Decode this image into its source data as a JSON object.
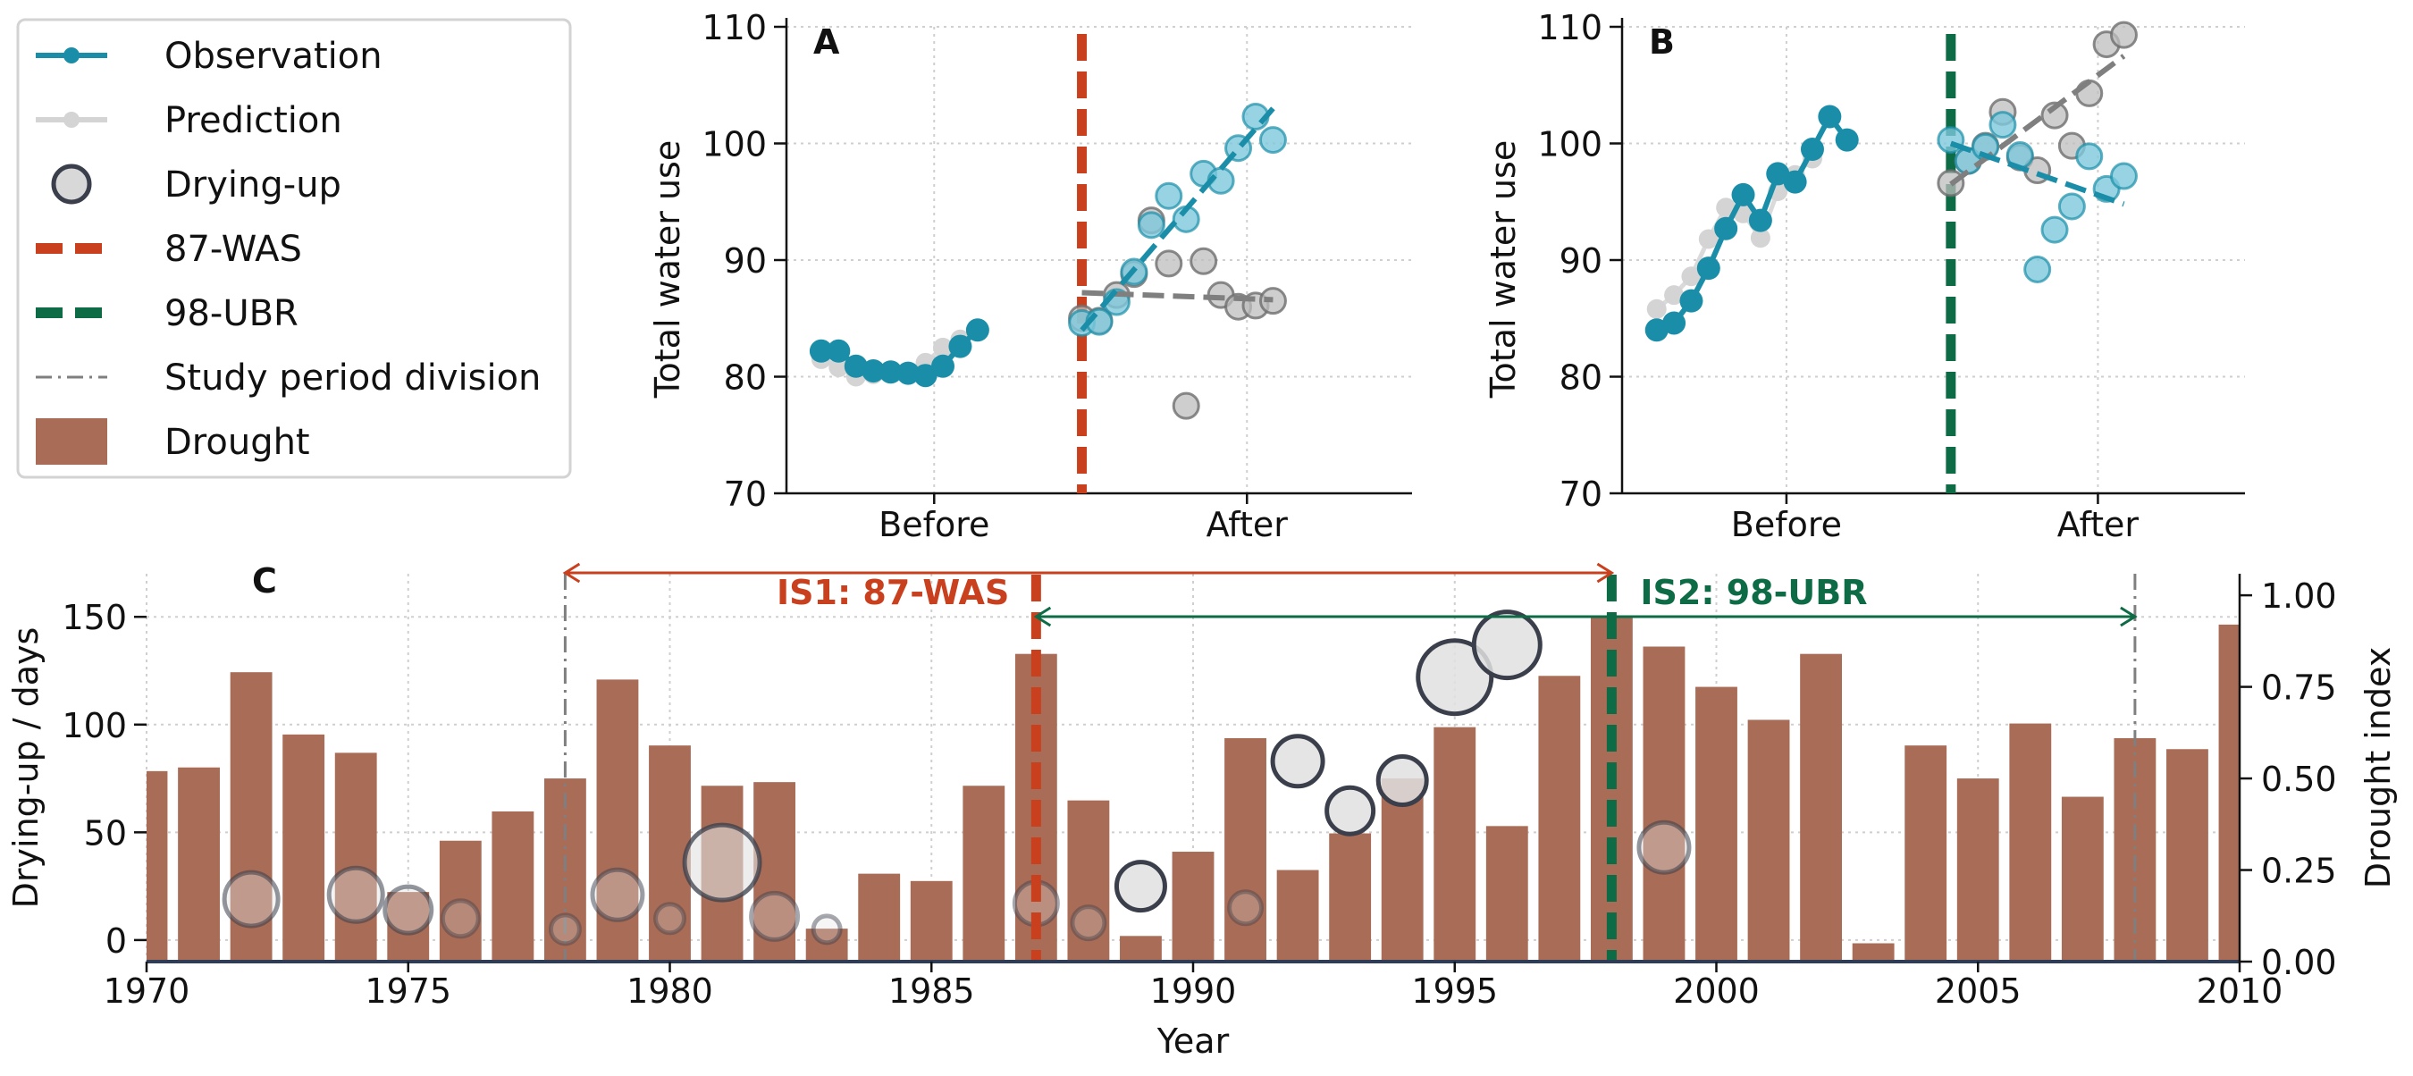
{
  "colors": {
    "observation": "#1a8ea8",
    "observation_light": "#8fcfe0",
    "prediction": "#d4d4d4",
    "prediction_dark": "#b9b9b9",
    "circle_edge": "#3a3f4b",
    "was": "#c9401f",
    "ubr": "#0d6b46",
    "division": "#7f7f7f",
    "drought": "#a96c56",
    "trend_pred": "#7f7f7f"
  },
  "legend": [
    {
      "key": "observation",
      "label": "Observation"
    },
    {
      "key": "prediction",
      "label": "Prediction"
    },
    {
      "key": "drying",
      "label": "Drying-up"
    },
    {
      "key": "was",
      "label": "87-WAS"
    },
    {
      "key": "ubr",
      "label": "98-UBR"
    },
    {
      "key": "division",
      "label": "Study period division"
    },
    {
      "key": "drought",
      "label": "Drought"
    }
  ],
  "chart_data": [
    {
      "id": "A",
      "type": "line",
      "panel_label": "A",
      "ylabel": "Total water use",
      "ylim": [
        70,
        110
      ],
      "yticks": [
        70,
        80,
        90,
        100,
        110
      ],
      "xlim": [
        -17,
        19
      ],
      "x_category_labels": [
        {
          "label": "Before",
          "x": -8.5
        },
        {
          "label": "After",
          "x": 9.5
        }
      ],
      "intervention_x": 0,
      "observation_before": [
        [
          -15,
          82.2
        ],
        [
          -14,
          82.2
        ],
        [
          -13,
          80.9
        ],
        [
          -12,
          80.5
        ],
        [
          -11,
          80.4
        ],
        [
          -10,
          80.3
        ],
        [
          -9,
          80.1
        ],
        [
          -8,
          80.9
        ],
        [
          -7,
          82.6
        ],
        [
          -6,
          84.0
        ]
      ],
      "prediction_before": [
        [
          -15,
          81.5
        ],
        [
          -14,
          80.8
        ],
        [
          -13,
          80.0
        ],
        [
          -12,
          80.2
        ],
        [
          -11,
          80.3
        ],
        [
          -10,
          80.2
        ],
        [
          -9,
          81.2
        ],
        [
          -8,
          82.5
        ],
        [
          -7,
          83.2
        ]
      ],
      "observation_after": [
        [
          0,
          84.6
        ],
        [
          1,
          84.7
        ],
        [
          2,
          86.4
        ],
        [
          3,
          89.0
        ],
        [
          4,
          93.0
        ],
        [
          5,
          95.5
        ],
        [
          6,
          93.5
        ],
        [
          7,
          97.4
        ],
        [
          8,
          96.8
        ],
        [
          9,
          99.6
        ],
        [
          10,
          102.3
        ],
        [
          11,
          100.3
        ]
      ],
      "prediction_after": [
        [
          0,
          85.0
        ],
        [
          1,
          84.8
        ],
        [
          2,
          87.0
        ],
        [
          3,
          88.8
        ],
        [
          4,
          93.4
        ],
        [
          5,
          89.7
        ],
        [
          6,
          77.5
        ],
        [
          7,
          89.9
        ],
        [
          8,
          87.0
        ],
        [
          9,
          86.0
        ],
        [
          10,
          86.1
        ],
        [
          11,
          86.5
        ]
      ],
      "observation_trend": [
        [
          0,
          84.0
        ],
        [
          11,
          103.0
        ]
      ],
      "prediction_trend": [
        [
          0,
          87.2
        ],
        [
          11,
          86.6
        ]
      ]
    },
    {
      "id": "B",
      "type": "line",
      "panel_label": "B",
      "ylabel": "Total water use",
      "ylim": [
        70,
        110
      ],
      "yticks": [
        70,
        80,
        90,
        100,
        110
      ],
      "xlim": [
        -19,
        17
      ],
      "x_category_labels": [
        {
          "label": "Before",
          "x": -9.5
        },
        {
          "label": "After",
          "x": 8.5
        }
      ],
      "intervention_x": 0,
      "observation_before": [
        [
          -17,
          84.0
        ],
        [
          -16,
          84.6
        ],
        [
          -15,
          86.5
        ],
        [
          -14,
          89.3
        ],
        [
          -13,
          92.7
        ],
        [
          -12,
          95.6
        ],
        [
          -11,
          93.4
        ],
        [
          -10,
          97.4
        ],
        [
          -9,
          96.7
        ],
        [
          -8,
          99.5
        ],
        [
          -7,
          102.3
        ],
        [
          -6,
          100.3
        ]
      ],
      "prediction_before": [
        [
          -17,
          85.8
        ],
        [
          -16,
          87.0
        ],
        [
          -15,
          88.6
        ],
        [
          -14,
          91.8
        ],
        [
          -13,
          94.5
        ],
        [
          -12,
          94.0
        ],
        [
          -11,
          91.9
        ],
        [
          -10,
          95.9
        ],
        [
          -9,
          97.3
        ],
        [
          -8,
          98.7
        ]
      ],
      "observation_after": [
        [
          0,
          100.3
        ],
        [
          1,
          98.5
        ],
        [
          2,
          99.7
        ],
        [
          3,
          101.6
        ],
        [
          4,
          99.0
        ],
        [
          5,
          89.2
        ],
        [
          6,
          92.6
        ],
        [
          7,
          94.6
        ],
        [
          8,
          98.9
        ],
        [
          9,
          96.1
        ],
        [
          10,
          97.2
        ]
      ],
      "prediction_after": [
        [
          0,
          96.6
        ],
        [
          1,
          98.5
        ],
        [
          2,
          99.8
        ],
        [
          3,
          102.7
        ],
        [
          4,
          98.8
        ],
        [
          5,
          97.7
        ],
        [
          6,
          102.4
        ],
        [
          7,
          99.8
        ],
        [
          8,
          104.3
        ],
        [
          9,
          108.5
        ],
        [
          10,
          109.3
        ]
      ],
      "observation_trend": [
        [
          0,
          100.0
        ],
        [
          10,
          94.8
        ]
      ],
      "prediction_trend": [
        [
          0,
          96.5
        ],
        [
          10,
          107.5
        ]
      ]
    },
    {
      "id": "C",
      "type": "bar",
      "panel_label": "C",
      "xlabel": "Year",
      "ylabel": "Drying-up / days",
      "y2label": "Drought index",
      "xlim": [
        1970,
        2010
      ],
      "xticks": [
        1970,
        1975,
        1980,
        1985,
        1990,
        1995,
        2000,
        2005,
        2010
      ],
      "ylim": [
        -10,
        170
      ],
      "yticks": [
        0,
        50,
        100,
        150
      ],
      "y2lim": [
        0,
        1.0588
      ],
      "y2ticks": [
        0.0,
        0.25,
        0.5,
        0.75,
        1.0
      ],
      "y2ticklabels": [
        "0.00",
        "0.25",
        "0.50",
        "0.75",
        "1.00"
      ],
      "drought_years": [
        1970,
        1971,
        1972,
        1973,
        1974,
        1975,
        1976,
        1977,
        1978,
        1979,
        1980,
        1981,
        1982,
        1983,
        1984,
        1985,
        1986,
        1987,
        1988,
        1989,
        1990,
        1991,
        1992,
        1993,
        1994,
        1995,
        1996,
        1997,
        1998,
        1999,
        2000,
        2001,
        2002,
        2003,
        2004,
        2005,
        2006,
        2007,
        2008,
        2009,
        2010
      ],
      "drought_index": [
        0.52,
        0.53,
        0.79,
        0.62,
        0.57,
        0.19,
        0.33,
        0.41,
        0.5,
        0.77,
        0.59,
        0.48,
        0.49,
        0.09,
        0.24,
        0.22,
        0.48,
        0.84,
        0.44,
        0.07,
        0.3,
        0.61,
        0.25,
        0.35,
        0.5,
        0.64,
        0.37,
        0.78,
        0.94,
        0.86,
        0.75,
        0.66,
        0.84,
        0.05,
        0.59,
        0.5,
        0.65,
        0.45,
        0.61,
        0.58,
        0.92
      ],
      "drying_up": [
        {
          "year": 1972,
          "days": 19,
          "r": 30,
          "alpha": 0.4
        },
        {
          "year": 1974,
          "days": 21,
          "r": 30,
          "alpha": 0.4
        },
        {
          "year": 1975,
          "days": 14,
          "r": 26,
          "alpha": 0.4
        },
        {
          "year": 1976,
          "days": 10,
          "r": 20,
          "alpha": 0.25
        },
        {
          "year": 1978,
          "days": 5,
          "r": 16,
          "alpha": 0.25
        },
        {
          "year": 1979,
          "days": 21,
          "r": 28,
          "alpha": 0.35
        },
        {
          "year": 1980,
          "days": 10,
          "r": 16,
          "alpha": 0.25
        },
        {
          "year": 1981,
          "days": 36,
          "r": 42,
          "alpha": 0.6
        },
        {
          "year": 1982,
          "days": 11,
          "r": 26,
          "alpha": 0.3
        },
        {
          "year": 1983,
          "days": 5,
          "r": 15,
          "alpha": 0.3
        },
        {
          "year": 1987,
          "days": 17,
          "r": 24,
          "alpha": 0.3
        },
        {
          "year": 1988,
          "days": 8,
          "r": 18,
          "alpha": 0.25
        },
        {
          "year": 1989,
          "days": 25,
          "r": 27,
          "alpha": 0.85
        },
        {
          "year": 1991,
          "days": 15,
          "r": 18,
          "alpha": 0.25
        },
        {
          "year": 1992,
          "days": 83,
          "r": 28,
          "alpha": 0.85
        },
        {
          "year": 1993,
          "days": 60,
          "r": 26,
          "alpha": 0.85
        },
        {
          "year": 1994,
          "days": 74,
          "r": 27,
          "alpha": 0.85
        },
        {
          "year": 1995,
          "days": 122,
          "r": 41,
          "alpha": 0.85
        },
        {
          "year": 1996,
          "days": 137,
          "r": 37,
          "alpha": 0.85
        },
        {
          "year": 1999,
          "days": 43,
          "r": 28,
          "alpha": 0.4
        }
      ],
      "was_year": 1987,
      "ubr_year": 1998,
      "division_years": [
        1978,
        2008
      ],
      "is1": {
        "label": "IS1: 87-WAS",
        "start": 1978,
        "end": 1998
      },
      "is2": {
        "label": "IS2: 98-UBR",
        "start": 1987,
        "end": 2008
      }
    }
  ]
}
